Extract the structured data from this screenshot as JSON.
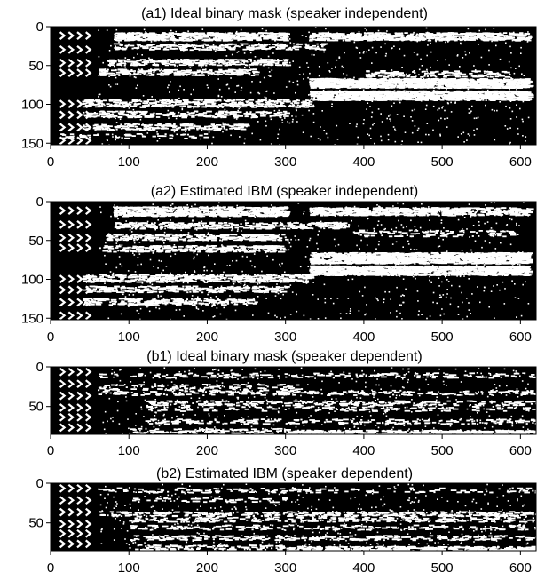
{
  "chart_data": [
    {
      "type": "heatmap",
      "title": "(a1) Ideal binary mask (speaker independent)",
      "xlim": [
        0,
        620
      ],
      "ylim": [
        0,
        152
      ],
      "y_inverted": true,
      "xticks": [
        0,
        100,
        200,
        300,
        400,
        500,
        600
      ],
      "yticks": [
        0,
        50,
        100,
        150
      ],
      "colormap": {
        "0": "#000000",
        "1": "#ffffff"
      },
      "bands": [
        {
          "name": "",
          "y": 12,
          "x": [
            80,
            610
          ],
          "density": 0.55
        },
        {
          "name": "",
          "y": 72,
          "x": [
            330,
            610
          ],
          "density": 0.8
        },
        {
          "name": "",
          "y": 88,
          "x": [
            330,
            610
          ],
          "density": 0.8
        }
      ]
    },
    {
      "type": "heatmap",
      "title": "(a2) Estimated IBM (speaker independent)",
      "xlim": [
        0,
        620
      ],
      "ylim": [
        0,
        152
      ],
      "y_inverted": true,
      "xticks": [
        0,
        100,
        200,
        300,
        400,
        500,
        600
      ],
      "yticks": [
        0,
        50,
        100,
        150
      ],
      "colormap": {
        "0": "#000000",
        "1": "#ffffff"
      }
    },
    {
      "type": "heatmap",
      "title": "(b1) Ideal binary mask (speaker dependent)",
      "xlim": [
        0,
        620
      ],
      "ylim": [
        0,
        85
      ],
      "y_inverted": true,
      "xticks": [
        0,
        100,
        200,
        300,
        400,
        500,
        600
      ],
      "yticks": [
        0,
        50
      ],
      "colormap": {
        "0": "#000000",
        "1": "#ffffff"
      }
    },
    {
      "type": "heatmap",
      "title": "(b2) Estimated IBM (speaker dependent)",
      "xlim": [
        0,
        620
      ],
      "ylim": [
        0,
        85
      ],
      "y_inverted": true,
      "xticks": [
        0,
        100,
        200,
        300,
        400,
        500,
        600
      ],
      "yticks": [
        0,
        50
      ],
      "colormap": {
        "0": "#000000",
        "1": "#ffffff"
      }
    }
  ]
}
